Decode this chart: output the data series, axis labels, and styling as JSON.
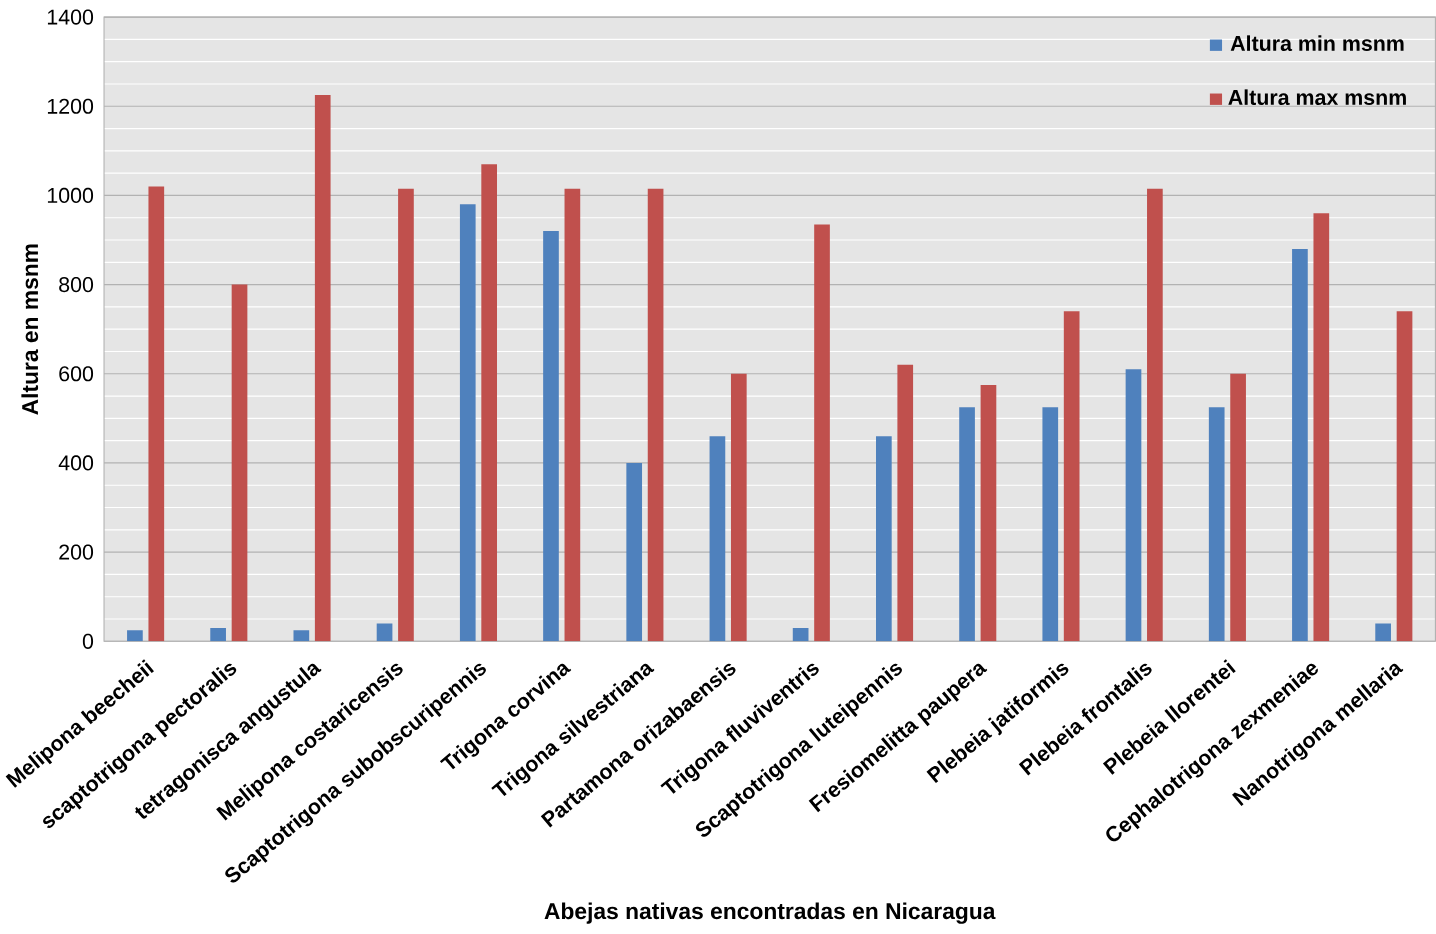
{
  "chart_data": {
    "type": "bar",
    "xlabel": "Abejas nativas encontradas en Nicaragua",
    "ylabel": "Altura en msnm",
    "categories": [
      "Melipona beecheii",
      "scaptotrigona pectoralis",
      "tetragonisca angustula",
      "Melipona costaricensis",
      "Scaptotrigona subobscuripennis",
      "Trigona corvina",
      "Trigona silvestriana",
      "Partamona orizabaensis",
      "Trigona fluviventris",
      "Scaptotrigona luteipennis",
      "Fresiomelitta paupera",
      "Plebeia jatiformis",
      "Plebeia frontalis",
      "Plebeia llorentei",
      "Cephalotrigona zexmeniae",
      "Nanotrigona mellaria"
    ],
    "series": [
      {
        "name": "Altura min msnm",
        "color": "#4f81bd",
        "values": [
          25,
          30,
          25,
          40,
          980,
          920,
          400,
          460,
          30,
          460,
          525,
          525,
          610,
          525,
          880,
          40
        ]
      },
      {
        "name": "Altura max msnm",
        "color": "#c0504d",
        "values": [
          1020,
          800,
          1225,
          1015,
          1070,
          1015,
          1015,
          600,
          935,
          620,
          575,
          740,
          1015,
          600,
          960,
          740
        ]
      }
    ],
    "ylim": [
      0,
      1400
    ],
    "yticks": [
      0,
      200,
      400,
      600,
      800,
      1000,
      1200,
      1400
    ],
    "grid": "y",
    "legend": "top right"
  }
}
